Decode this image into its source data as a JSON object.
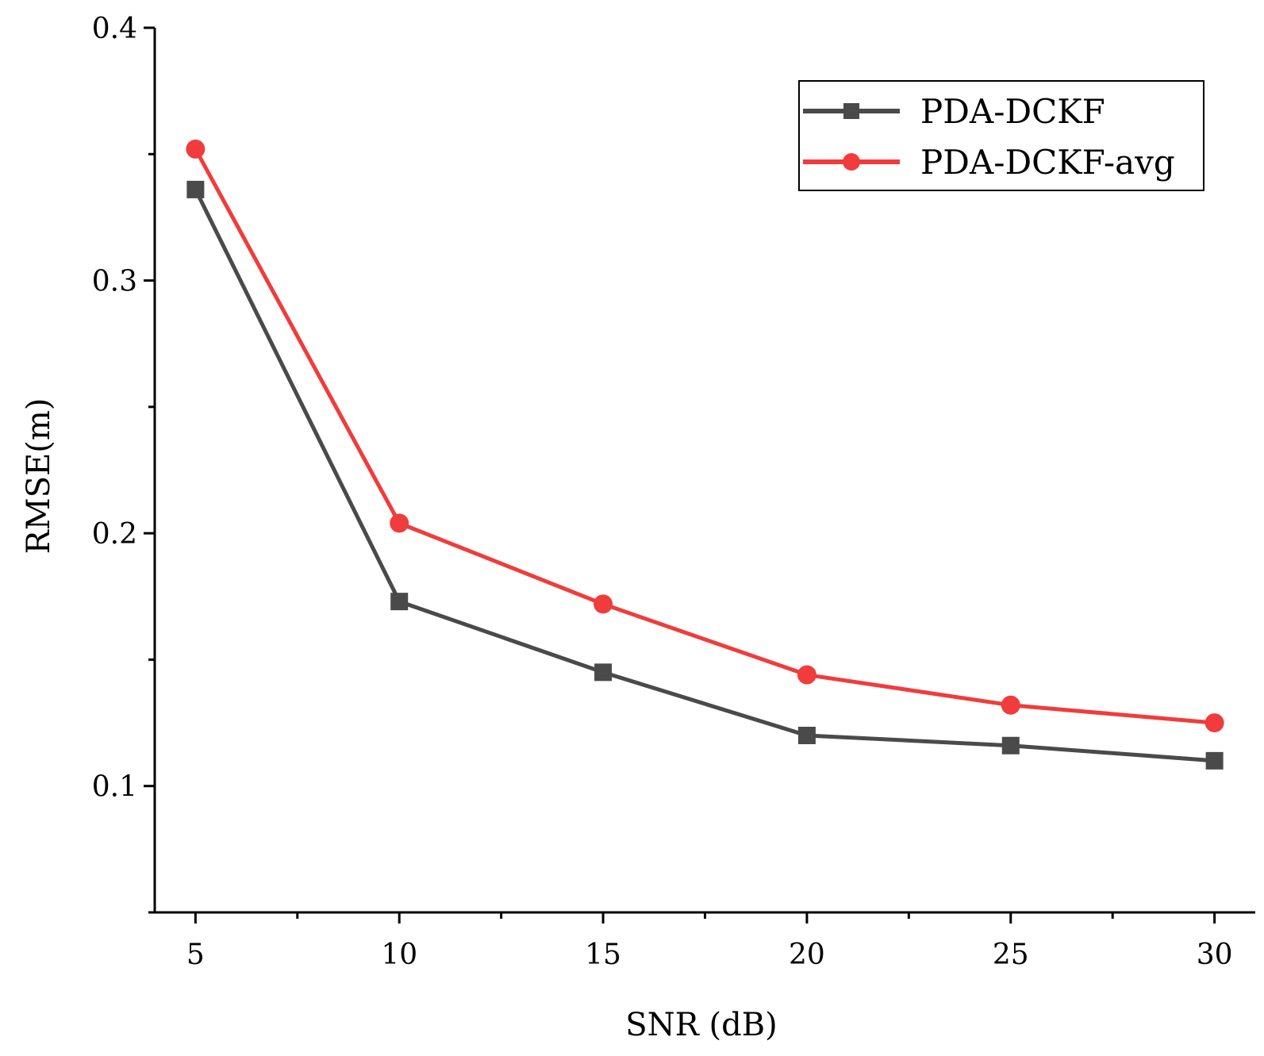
{
  "chart_data": {
    "type": "line",
    "title": "",
    "xlabel": "SNR (dB)",
    "ylabel": "RMSE(m)",
    "x": [
      5,
      10,
      15,
      20,
      25,
      30
    ],
    "x_ticks": [
      "5",
      "10",
      "15",
      "20",
      "25",
      "30"
    ],
    "y_ticks": [
      "0.1",
      "0.2",
      "0.3",
      "0.4"
    ],
    "y_tick_values": [
      0.1,
      0.2,
      0.3,
      0.4
    ],
    "xlim": [
      4,
      31
    ],
    "ylim": [
      0.05,
      0.4
    ],
    "grid": false,
    "legend_position": "top-right",
    "series": [
      {
        "name": "PDA-DCKF",
        "color": "#4a4a4a",
        "marker": "square",
        "values": [
          0.336,
          0.173,
          0.145,
          0.12,
          0.116,
          0.11
        ]
      },
      {
        "name": "PDA-DCKF-avg",
        "color": "#f03c3c",
        "marker": "circle",
        "values": [
          0.352,
          0.204,
          0.172,
          0.144,
          0.132,
          0.125
        ]
      }
    ]
  }
}
